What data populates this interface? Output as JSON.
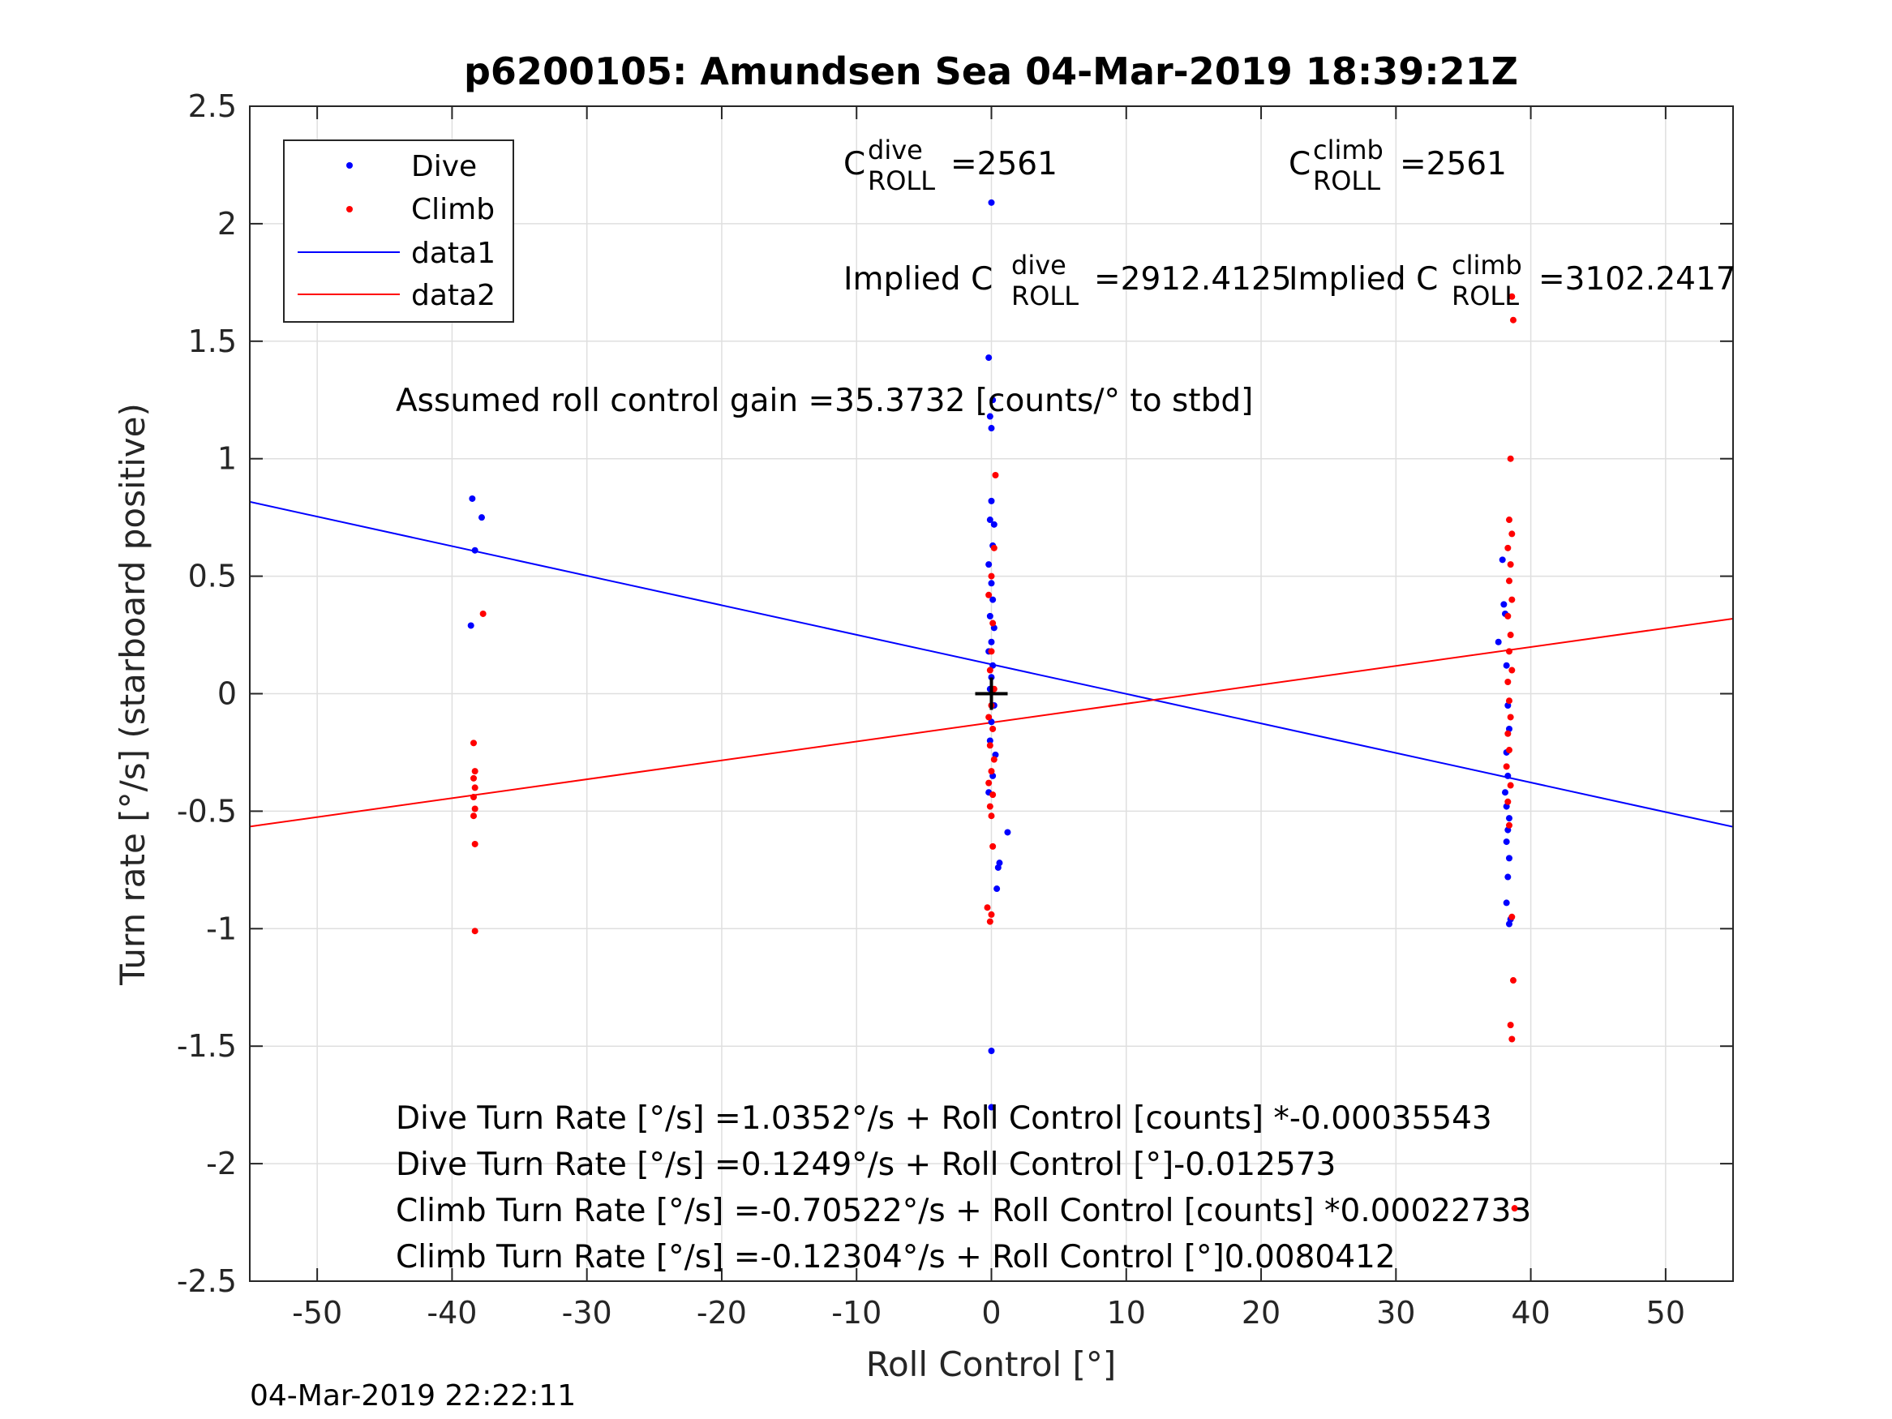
{
  "chart_data": {
    "type": "scatter",
    "title": "p6200105: Amundsen Sea 04-Mar-2019 18:39:21Z",
    "xlabel": "Roll Control [°]",
    "ylabel": "Turn rate [°/s] (starboard positive)",
    "xlim": [
      -55,
      55
    ],
    "ylim": [
      -2.5,
      2.5
    ],
    "xticks": [
      -50,
      -40,
      -30,
      -20,
      -10,
      0,
      10,
      20,
      30,
      40,
      50
    ],
    "xtick_labels": [
      "-50",
      "-40",
      "-30",
      "-20",
      "-10",
      "0",
      "10",
      "20",
      "30",
      "40",
      "50"
    ],
    "yticks": [
      2.5,
      2,
      1.5,
      1,
      0.5,
      0,
      -0.5,
      -1,
      -1.5,
      -2,
      -2.5
    ],
    "ytick_labels": [
      "2.5",
      "2",
      "1.5",
      "1",
      "0.5",
      "0",
      "-0.5",
      "-1",
      "-1.5",
      "-2",
      "-2.5"
    ],
    "grid": true,
    "legend_position": "top-left",
    "colors": {
      "dive": "#0000ff",
      "climb": "#ff0000",
      "axes": "#262626",
      "grid": "#dfdfdf"
    },
    "series": [
      {
        "name": "Dive",
        "kind": "points",
        "points": [
          [
            -38.5,
            0.83
          ],
          [
            -38.3,
            0.61
          ],
          [
            -37.8,
            0.75
          ],
          [
            -38.6,
            0.29
          ],
          [
            0.0,
            2.09
          ],
          [
            -0.2,
            1.43
          ],
          [
            0.1,
            1.25
          ],
          [
            -0.1,
            1.18
          ],
          [
            0.0,
            1.13
          ],
          [
            0.0,
            0.82
          ],
          [
            -0.1,
            0.74
          ],
          [
            0.2,
            0.72
          ],
          [
            0.1,
            0.63
          ],
          [
            -0.2,
            0.55
          ],
          [
            0.0,
            0.47
          ],
          [
            0.1,
            0.4
          ],
          [
            -0.1,
            0.33
          ],
          [
            0.2,
            0.28
          ],
          [
            0.0,
            0.22
          ],
          [
            -0.2,
            0.18
          ],
          [
            0.1,
            0.12
          ],
          [
            0.0,
            0.07
          ],
          [
            -0.1,
            0.02
          ],
          [
            0.2,
            -0.05
          ],
          [
            0.0,
            -0.12
          ],
          [
            -0.1,
            -0.2
          ],
          [
            0.3,
            -0.26
          ],
          [
            0.1,
            -0.35
          ],
          [
            -0.2,
            -0.42
          ],
          [
            1.2,
            -0.59
          ],
          [
            0.6,
            -0.72
          ],
          [
            0.5,
            -0.74
          ],
          [
            0.4,
            -0.83
          ],
          [
            0.0,
            -1.52
          ],
          [
            0.0,
            -1.76
          ],
          [
            37.9,
            0.57
          ],
          [
            37.6,
            0.22
          ],
          [
            38.0,
            0.38
          ],
          [
            38.1,
            0.34
          ],
          [
            38.2,
            0.12
          ],
          [
            38.3,
            -0.05
          ],
          [
            38.4,
            -0.15
          ],
          [
            38.2,
            -0.25
          ],
          [
            38.3,
            -0.35
          ],
          [
            38.1,
            -0.42
          ],
          [
            38.2,
            -0.48
          ],
          [
            38.4,
            -0.53
          ],
          [
            38.3,
            -0.58
          ],
          [
            38.2,
            -0.63
          ],
          [
            38.4,
            -0.7
          ],
          [
            38.3,
            -0.78
          ],
          [
            38.2,
            -0.89
          ],
          [
            38.5,
            -0.96
          ],
          [
            38.4,
            -0.98
          ]
        ]
      },
      {
        "name": "Climb",
        "kind": "points",
        "points": [
          [
            -37.7,
            0.34
          ],
          [
            -38.4,
            -0.21
          ],
          [
            -38.3,
            -0.33
          ],
          [
            -38.4,
            -0.36
          ],
          [
            -38.3,
            -0.4
          ],
          [
            -38.4,
            -0.44
          ],
          [
            -38.3,
            -0.49
          ],
          [
            -38.4,
            -0.52
          ],
          [
            -38.3,
            -0.64
          ],
          [
            -38.3,
            -1.01
          ],
          [
            0.3,
            0.93
          ],
          [
            0.2,
            0.62
          ],
          [
            0.0,
            0.5
          ],
          [
            -0.2,
            0.42
          ],
          [
            0.1,
            0.3
          ],
          [
            0.0,
            0.18
          ],
          [
            -0.1,
            0.1
          ],
          [
            0.2,
            0.02
          ],
          [
            0.0,
            -0.05
          ],
          [
            -0.2,
            -0.1
          ],
          [
            0.1,
            -0.15
          ],
          [
            -0.1,
            -0.22
          ],
          [
            0.2,
            -0.28
          ],
          [
            0.0,
            -0.33
          ],
          [
            -0.2,
            -0.38
          ],
          [
            0.1,
            -0.43
          ],
          [
            -0.1,
            -0.48
          ],
          [
            0.0,
            -0.52
          ],
          [
            0.1,
            -0.65
          ],
          [
            -0.3,
            -0.91
          ],
          [
            0.0,
            -0.94
          ],
          [
            -0.1,
            -0.97
          ],
          [
            38.6,
            1.69
          ],
          [
            38.7,
            1.59
          ],
          [
            38.5,
            1.0
          ],
          [
            38.4,
            0.74
          ],
          [
            38.6,
            0.68
          ],
          [
            38.3,
            0.62
          ],
          [
            38.5,
            0.55
          ],
          [
            38.4,
            0.48
          ],
          [
            38.6,
            0.4
          ],
          [
            38.3,
            0.33
          ],
          [
            38.5,
            0.25
          ],
          [
            38.4,
            0.18
          ],
          [
            38.6,
            0.1
          ],
          [
            38.3,
            0.05
          ],
          [
            38.4,
            -0.03
          ],
          [
            38.5,
            -0.1
          ],
          [
            38.3,
            -0.17
          ],
          [
            38.4,
            -0.24
          ],
          [
            38.2,
            -0.31
          ],
          [
            38.5,
            -0.39
          ],
          [
            38.3,
            -0.46
          ],
          [
            38.4,
            -0.56
          ],
          [
            38.6,
            -0.95
          ],
          [
            38.7,
            -1.22
          ],
          [
            38.5,
            -1.41
          ],
          [
            38.6,
            -1.47
          ],
          [
            38.8,
            -2.19
          ]
        ]
      },
      {
        "name": "data1",
        "kind": "line",
        "intercept": 0.1249,
        "slope": -0.012573
      },
      {
        "name": "data2",
        "kind": "line",
        "intercept": -0.12304,
        "slope": 0.0080412
      }
    ],
    "marker": {
      "label": "+",
      "x": 0,
      "y": 0
    },
    "annotations": {
      "c_dive_base": "C",
      "c_dive_sup": "dive",
      "c_dive_sub": "ROLL",
      "c_dive_val": "=2561",
      "c_climb_base": "C",
      "c_climb_sup": "climb",
      "c_climb_sub": "ROLL",
      "c_climb_val": "=2561",
      "implied_dive_prefix": "Implied C",
      "implied_dive_sup": "dive",
      "implied_dive_sub": "ROLL",
      "implied_dive_val": "=2912.4125",
      "implied_climb_prefix": "Implied C",
      "implied_climb_sup": "climb",
      "implied_climb_sub": "ROLL",
      "implied_climb_val": "=3102.2417",
      "gain": "Assumed roll control gain =35.3732 [counts/° to stbd]",
      "eq1": "Dive Turn Rate [°/s] =1.0352°/s + Roll Control [counts] *-0.00035543",
      "eq2": "Dive Turn Rate [°/s] =0.1249°/s + Roll Control [°]-0.012573",
      "eq3": "Climb Turn Rate [°/s] =-0.70522°/s + Roll Control [counts] *0.00022733",
      "eq4": "Climb Turn Rate [°/s] =-0.12304°/s + Roll Control [°]0.0080412"
    }
  },
  "footer": {
    "timestamp": "04-Mar-2019 22:22:11"
  }
}
